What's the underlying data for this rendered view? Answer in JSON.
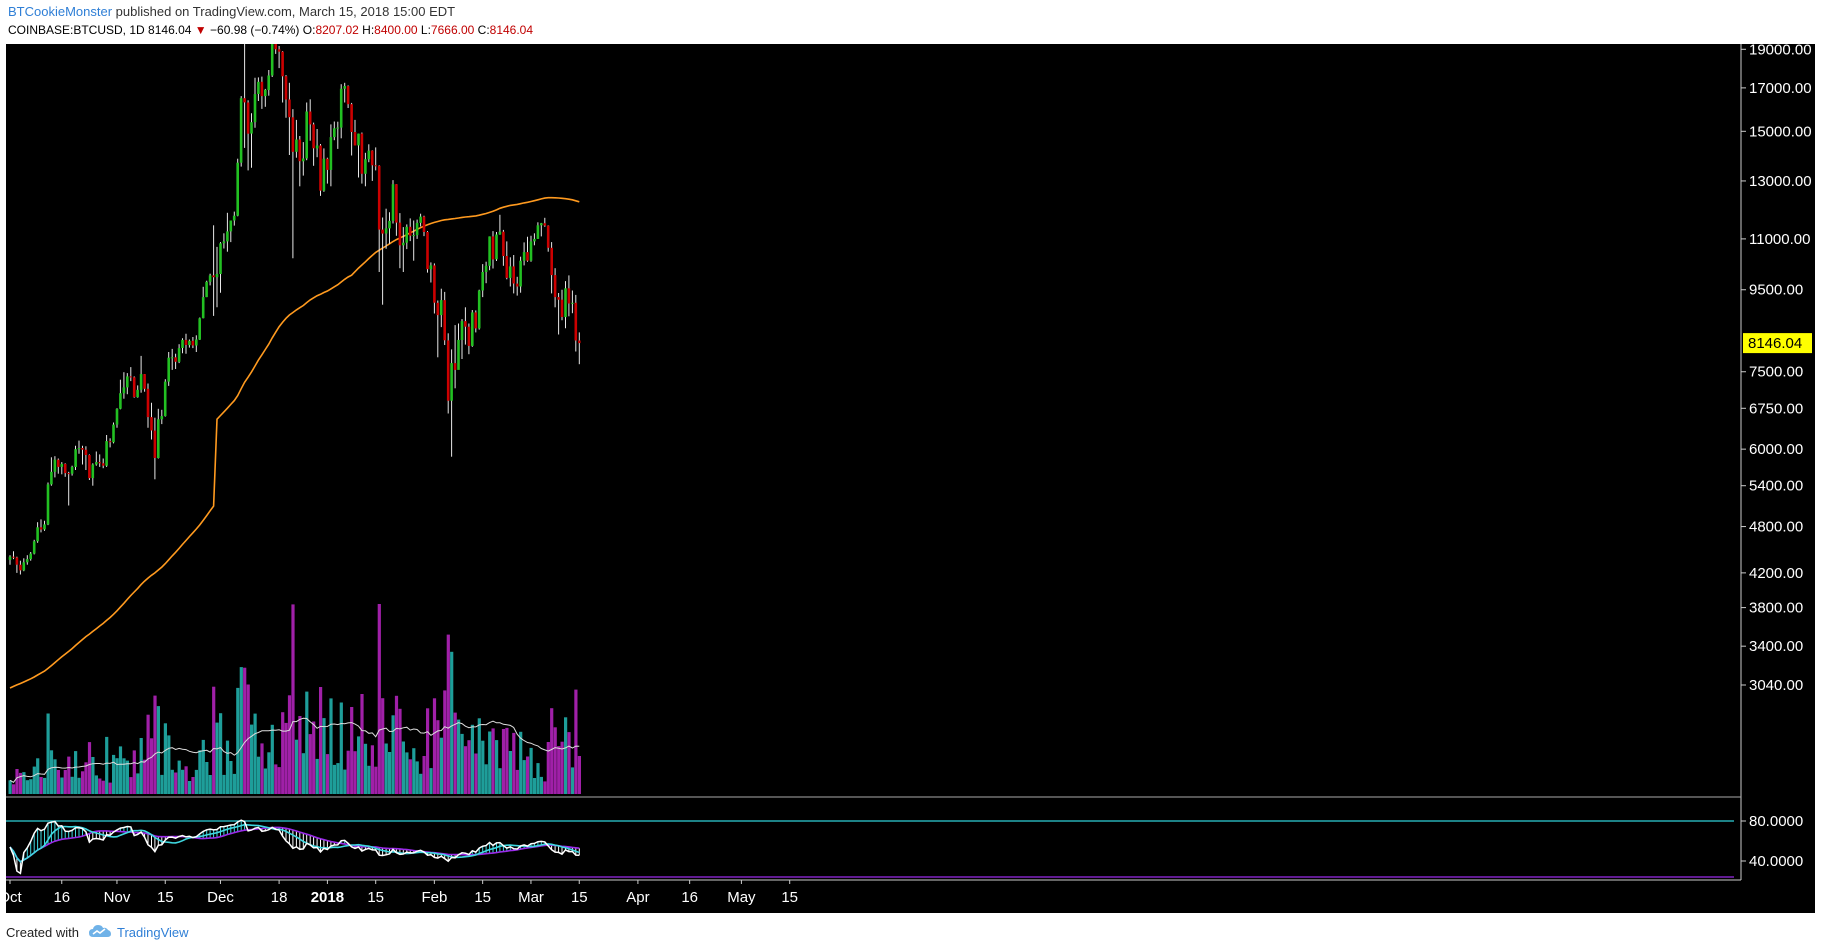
{
  "header": {
    "author": "BTCookieMonster",
    "published_text": "published on TradingView.com, March 15, 2018 15:00 EDT",
    "symbol": "COINBASE:BTCUSD, 1D",
    "last": "8146.04",
    "change": "−60.98 (−0.74%)",
    "o_label": "O:",
    "o_value": "8207.02",
    "h_label": "H:",
    "h_value": "8400.00",
    "l_label": "L:",
    "l_value": "7666.00",
    "c_label": "C:",
    "c_value": "8146.04"
  },
  "footer": {
    "created_with": "Created with",
    "brand": "TradingView"
  },
  "colors": {
    "background": "#000000",
    "up": "#22c022",
    "down": "#cc0000",
    "ma": "#ff9a1f",
    "vol_up": "#1e9e9a",
    "vol_down": "#a020a8",
    "price_tag": "#ffff00",
    "rsi_line": "#ffffff",
    "signal_cyan": "#3fd8e0",
    "signal_purple": "#9a2be8"
  },
  "chart_data": {
    "type": "candlestick",
    "symbol": "COINBASE:BTCUSD",
    "interval": "1D",
    "y_scale": "log",
    "last_price": "8146.04",
    "price_ticks": [
      "19000.00",
      "17000.00",
      "15000.00",
      "13000.00",
      "11000.00",
      "9500.00",
      "7500.00",
      "6750.00",
      "6000.00",
      "5400.00",
      "4800.00",
      "4200.00",
      "3800.00",
      "3400.00",
      "3040.00"
    ],
    "price_tick_values": [
      19000,
      17000,
      15000,
      13000,
      11000,
      9500,
      7500,
      6750,
      6000,
      5400,
      4800,
      4200,
      3800,
      3400,
      3040
    ],
    "osc_ticks": [
      "80.0000",
      "40.0000"
    ],
    "osc_tick_values": [
      80,
      40
    ],
    "x_labels": [
      "Oct",
      "16",
      "Nov",
      "15",
      "Dec",
      "18",
      "2018",
      "15",
      "Feb",
      "15",
      "Mar",
      "15",
      "Apr",
      "16",
      "May",
      "15"
    ],
    "x_label_dates": [
      "2017-10-01",
      "2017-10-16",
      "2017-11-01",
      "2017-11-15",
      "2017-12-01",
      "2017-12-18",
      "2018-01-01",
      "2018-01-15",
      "2018-02-01",
      "2018-02-15",
      "2018-03-01",
      "2018-03-15",
      "2018-04-01",
      "2018-04-16",
      "2018-05-01",
      "2018-05-15"
    ],
    "x_bold_labels": [
      "2018"
    ],
    "candles": [
      [
        "2017-10-01",
        4360,
        4420,
        4300,
        4400
      ],
      [
        "2017-10-02",
        4400,
        4470,
        4370,
        4390
      ],
      [
        "2017-10-03",
        4390,
        4400,
        4200,
        4300
      ],
      [
        "2017-10-04",
        4300,
        4350,
        4180,
        4230
      ],
      [
        "2017-10-05",
        4230,
        4380,
        4220,
        4330
      ],
      [
        "2017-10-06",
        4330,
        4420,
        4300,
        4370
      ],
      [
        "2017-10-07",
        4370,
        4460,
        4350,
        4440
      ],
      [
        "2017-10-08",
        4440,
        4620,
        4430,
        4600
      ],
      [
        "2017-10-09",
        4600,
        4860,
        4580,
        4790
      ],
      [
        "2017-10-10",
        4790,
        4900,
        4720,
        4760
      ],
      [
        "2017-10-11",
        4760,
        4880,
        4740,
        4830
      ],
      [
        "2017-10-12",
        4830,
        5450,
        4820,
        5420
      ],
      [
        "2017-10-13",
        5420,
        5860,
        5400,
        5620
      ],
      [
        "2017-10-14",
        5620,
        5880,
        5530,
        5820
      ],
      [
        "2017-10-15",
        5820,
        5840,
        5590,
        5700
      ],
      [
        "2017-10-16",
        5700,
        5780,
        5580,
        5750
      ],
      [
        "2017-10-17",
        5750,
        5760,
        5540,
        5600
      ],
      [
        "2017-10-18",
        5600,
        5620,
        5100,
        5590
      ],
      [
        "2017-10-19",
        5590,
        5720,
        5560,
        5700
      ],
      [
        "2017-10-20",
        5700,
        6060,
        5650,
        6000
      ],
      [
        "2017-10-21",
        6000,
        6150,
        5920,
        6020
      ],
      [
        "2017-10-22",
        6020,
        6060,
        5740,
        5990
      ],
      [
        "2017-10-23",
        5990,
        6050,
        5650,
        5900
      ],
      [
        "2017-10-24",
        5900,
        5910,
        5490,
        5520
      ],
      [
        "2017-10-25",
        5520,
        5760,
        5400,
        5740
      ],
      [
        "2017-10-26",
        5740,
        5960,
        5720,
        5780
      ],
      [
        "2017-10-27",
        5780,
        5910,
        5700,
        5760
      ],
      [
        "2017-10-28",
        5760,
        5840,
        5680,
        5720
      ],
      [
        "2017-10-29",
        5720,
        6250,
        5700,
        6140
      ],
      [
        "2017-10-30",
        6140,
        6190,
        6030,
        6120
      ],
      [
        "2017-10-31",
        6120,
        6480,
        6100,
        6440
      ],
      [
        "2017-11-01",
        6440,
        6750,
        6380,
        6740
      ],
      [
        "2017-11-02",
        6740,
        7330,
        6730,
        7050
      ],
      [
        "2017-11-03",
        7050,
        7490,
        6940,
        7170
      ],
      [
        "2017-11-04",
        7170,
        7470,
        7030,
        7400
      ],
      [
        "2017-11-05",
        7400,
        7600,
        7300,
        7380
      ],
      [
        "2017-11-06",
        7380,
        7400,
        6960,
        6970
      ],
      [
        "2017-11-07",
        6970,
        7210,
        6960,
        7120
      ],
      [
        "2017-11-08",
        7120,
        7850,
        7060,
        7450
      ],
      [
        "2017-11-09",
        7450,
        7450,
        7080,
        7140
      ],
      [
        "2017-11-10",
        7140,
        7250,
        6380,
        6580
      ],
      [
        "2017-11-11",
        6580,
        6860,
        6170,
        6330
      ],
      [
        "2017-11-12",
        6330,
        6570,
        5500,
        5850
      ],
      [
        "2017-11-13",
        5850,
        6740,
        5840,
        6540
      ],
      [
        "2017-11-14",
        6540,
        6720,
        6450,
        6600
      ],
      [
        "2017-11-15",
        6600,
        7340,
        6590,
        7290
      ],
      [
        "2017-11-16",
        7290,
        7940,
        7200,
        7810
      ],
      [
        "2017-11-17",
        7810,
        8010,
        7540,
        7820
      ],
      [
        "2017-11-18",
        7820,
        7900,
        7560,
        7720
      ],
      [
        "2017-11-19",
        7720,
        8120,
        7690,
        8030
      ],
      [
        "2017-11-20",
        8030,
        8260,
        7910,
        8220
      ],
      [
        "2017-11-21",
        8220,
        8370,
        7900,
        8100
      ],
      [
        "2017-11-22",
        8100,
        8230,
        8040,
        8200
      ],
      [
        "2017-11-23",
        8200,
        8290,
        8030,
        8090
      ],
      [
        "2017-11-24",
        8090,
        8330,
        7940,
        8230
      ],
      [
        "2017-11-25",
        8230,
        8770,
        8220,
        8750
      ],
      [
        "2017-11-26",
        8750,
        9580,
        8750,
        9300
      ],
      [
        "2017-11-27",
        9300,
        9750,
        9300,
        9720
      ],
      [
        "2017-11-28",
        9720,
        9950,
        9620,
        9900
      ],
      [
        "2017-11-29",
        9900,
        11440,
        8810,
        9850
      ],
      [
        "2017-11-30",
        9850,
        10750,
        9030,
        9940
      ],
      [
        "2017-12-01",
        9940,
        10900,
        9420,
        10860
      ],
      [
        "2017-12-02",
        10860,
        11180,
        10700,
        10920
      ],
      [
        "2017-12-03",
        10920,
        11860,
        10600,
        11240
      ],
      [
        "2017-12-04",
        11240,
        11580,
        10900,
        11600
      ],
      [
        "2017-12-05",
        11600,
        11900,
        11430,
        11760
      ],
      [
        "2017-12-06",
        11760,
        13860,
        11740,
        13700
      ],
      [
        "2017-12-07",
        13700,
        16600,
        13550,
        16500
      ],
      [
        "2017-12-08",
        16500,
        19340,
        14300,
        16300
      ],
      [
        "2017-12-09",
        16300,
        16400,
        13400,
        14900
      ],
      [
        "2017-12-10",
        14900,
        15800,
        13500,
        15400
      ],
      [
        "2017-12-11",
        15400,
        17500,
        15150,
        16700
      ],
      [
        "2017-12-12",
        16700,
        17520,
        16370,
        17300
      ],
      [
        "2017-12-13",
        17300,
        17560,
        16000,
        16600
      ],
      [
        "2017-12-14",
        16600,
        16950,
        16100,
        16900
      ],
      [
        "2017-12-15",
        16900,
        17900,
        16620,
        17620
      ],
      [
        "2017-12-16",
        17620,
        19540,
        17540,
        19350
      ],
      [
        "2017-12-17",
        19350,
        19891,
        18750,
        19000
      ],
      [
        "2017-12-18",
        19000,
        19180,
        18000,
        18870
      ],
      [
        "2017-12-19",
        18870,
        18900,
        16300,
        17580
      ],
      [
        "2017-12-20",
        17580,
        17640,
        15600,
        16440
      ],
      [
        "2017-12-21",
        16440,
        17250,
        14010,
        15620
      ],
      [
        "2017-12-22",
        15620,
        15990,
        10400,
        14140
      ],
      [
        "2017-12-23",
        14140,
        15500,
        13900,
        14650
      ],
      [
        "2017-12-24",
        14650,
        14800,
        12800,
        13760
      ],
      [
        "2017-12-25",
        13760,
        14540,
        13200,
        13870
      ],
      [
        "2017-12-26",
        13870,
        16300,
        13800,
        15880
      ],
      [
        "2017-12-27",
        15880,
        16450,
        14600,
        15300
      ],
      [
        "2017-12-28",
        15300,
        15380,
        13580,
        14280
      ],
      [
        "2017-12-29",
        14280,
        15100,
        13920,
        14400
      ],
      [
        "2017-12-30",
        14400,
        14460,
        12450,
        12640
      ],
      [
        "2017-12-31",
        12640,
        14280,
        12600,
        13860
      ],
      [
        "2018-01-01",
        13860,
        13900,
        12900,
        13420
      ],
      [
        "2018-01-02",
        13420,
        15300,
        12800,
        14750
      ],
      [
        "2018-01-03",
        14750,
        15430,
        14620,
        15130
      ],
      [
        "2018-01-04",
        15130,
        15420,
        14260,
        15160
      ],
      [
        "2018-01-05",
        15160,
        17180,
        14700,
        16960
      ],
      [
        "2018-01-06",
        16960,
        17250,
        16300,
        17090
      ],
      [
        "2018-01-07",
        17090,
        17120,
        16040,
        16220
      ],
      [
        "2018-01-08",
        16220,
        16280,
        13990,
        14970
      ],
      [
        "2018-01-09",
        14970,
        15500,
        14400,
        14400
      ],
      [
        "2018-01-10",
        14400,
        14900,
        13130,
        14900
      ],
      [
        "2018-01-11",
        14900,
        14950,
        12900,
        13270
      ],
      [
        "2018-01-12",
        13270,
        14100,
        12800,
        13840
      ],
      [
        "2018-01-13",
        13840,
        14450,
        13720,
        14190
      ],
      [
        "2018-01-14",
        14190,
        14200,
        13000,
        13600
      ],
      [
        "2018-01-15",
        13600,
        14320,
        13400,
        13580
      ],
      [
        "2018-01-16",
        13580,
        13600,
        10000,
        11300
      ],
      [
        "2018-01-17",
        11300,
        11700,
        9100,
        11170
      ],
      [
        "2018-01-18",
        11170,
        12000,
        10690,
        11340
      ],
      [
        "2018-01-19",
        11340,
        11880,
        10850,
        11590
      ],
      [
        "2018-01-20",
        11590,
        13030,
        11500,
        12880
      ],
      [
        "2018-01-21",
        12880,
        12880,
        11100,
        11530
      ],
      [
        "2018-01-22",
        11530,
        11850,
        10110,
        10800
      ],
      [
        "2018-01-23",
        10800,
        11380,
        10000,
        10880
      ],
      [
        "2018-01-24",
        10880,
        11470,
        10680,
        11390
      ],
      [
        "2018-01-25",
        11390,
        11670,
        10930,
        11100
      ],
      [
        "2018-01-26",
        11100,
        11600,
        10330,
        11120
      ],
      [
        "2018-01-27",
        11120,
        11630,
        11000,
        11520
      ],
      [
        "2018-01-28",
        11520,
        11830,
        11400,
        11730
      ],
      [
        "2018-01-29",
        11730,
        11760,
        11090,
        11220
      ],
      [
        "2018-01-30",
        11220,
        11250,
        9980,
        10080
      ],
      [
        "2018-01-31",
        10080,
        10280,
        9700,
        10190
      ],
      [
        "2018-02-01",
        10190,
        10250,
        8870,
        9150
      ],
      [
        "2018-02-02",
        9150,
        9210,
        7820,
        8830
      ],
      [
        "2018-02-03",
        8830,
        9530,
        8530,
        9220
      ],
      [
        "2018-02-04",
        9220,
        9440,
        8100,
        8210
      ],
      [
        "2018-02-05",
        8210,
        8380,
        6650,
        6900
      ],
      [
        "2018-02-06",
        6900,
        8000,
        5870,
        7690
      ],
      [
        "2018-02-07",
        7690,
        8580,
        7150,
        7540
      ],
      [
        "2018-02-08",
        7540,
        8620,
        7620,
        8220
      ],
      [
        "2018-02-09",
        8220,
        8730,
        7780,
        8680
      ],
      [
        "2018-02-10",
        8680,
        9030,
        8110,
        8540
      ],
      [
        "2018-02-11",
        8540,
        8620,
        7890,
        8080
      ],
      [
        "2018-02-12",
        8080,
        8960,
        8060,
        8900
      ],
      [
        "2018-02-13",
        8900,
        8950,
        8400,
        8500
      ],
      [
        "2018-02-14",
        8500,
        9500,
        8470,
        9480
      ],
      [
        "2018-02-15",
        9480,
        10230,
        9300,
        10000
      ],
      [
        "2018-02-16",
        10000,
        10300,
        9680,
        10180
      ],
      [
        "2018-02-17",
        10180,
        11080,
        10050,
        11080
      ],
      [
        "2018-02-18",
        11080,
        11250,
        10100,
        10370
      ],
      [
        "2018-02-19",
        10370,
        11220,
        10320,
        11140
      ],
      [
        "2018-02-20",
        11140,
        11790,
        11130,
        11230
      ],
      [
        "2018-02-21",
        11230,
        11290,
        10180,
        10470
      ],
      [
        "2018-02-22",
        10470,
        10920,
        9790,
        9830
      ],
      [
        "2018-02-23",
        9830,
        10430,
        9590,
        10160
      ],
      [
        "2018-02-24",
        10160,
        10500,
        9400,
        9670
      ],
      [
        "2018-02-25",
        9670,
        9860,
        9340,
        9590
      ],
      [
        "2018-02-26",
        9590,
        10450,
        9420,
        10330
      ],
      [
        "2018-02-27",
        10330,
        10890,
        10190,
        10590
      ],
      [
        "2018-02-28",
        10590,
        11070,
        10300,
        10330
      ],
      [
        "2018-03-01",
        10330,
        11100,
        10300,
        10920
      ],
      [
        "2018-03-02",
        10920,
        11180,
        10800,
        11000
      ],
      [
        "2018-03-03",
        11000,
        11540,
        11000,
        11440
      ],
      [
        "2018-03-04",
        11440,
        11520,
        11080,
        11510
      ],
      [
        "2018-03-05",
        11510,
        11690,
        11390,
        11430
      ],
      [
        "2018-03-06",
        11430,
        11440,
        10600,
        10720
      ],
      [
        "2018-03-07",
        10720,
        10900,
        9400,
        9910
      ],
      [
        "2018-03-08",
        9910,
        10110,
        9030,
        9300
      ],
      [
        "2018-03-09",
        9300,
        9410,
        8350,
        9230
      ],
      [
        "2018-03-10",
        9230,
        9500,
        8700,
        8780
      ],
      [
        "2018-03-11",
        8780,
        9740,
        8500,
        9540
      ],
      [
        "2018-03-12",
        9540,
        9900,
        8800,
        9130
      ],
      [
        "2018-03-13",
        9130,
        9480,
        8880,
        9150
      ],
      [
        "2018-03-14",
        9150,
        9360,
        7950,
        8207.02
      ],
      [
        "2018-03-15",
        8207.02,
        8400,
        7666,
        8146.04
      ]
    ],
    "series": [
      {
        "name": "",
        "kind": "price_ma_line",
        "color": "#ff9a1f"
      },
      {
        "name": "",
        "kind": "volume_histogram"
      },
      {
        "name": "",
        "kind": "volume_ma_line",
        "color": "#ffffff"
      },
      {
        "name": "",
        "kind": "oscillator"
      }
    ]
  }
}
